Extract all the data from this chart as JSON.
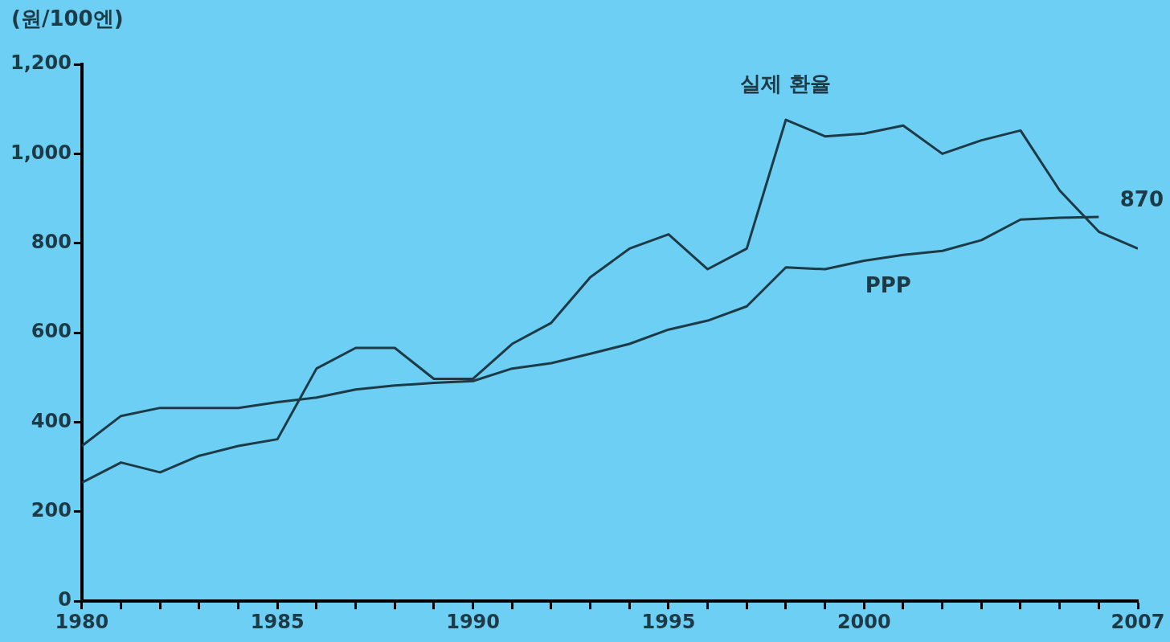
{
  "chart_data": {
    "type": "line",
    "ylabel": "(원/100엔)",
    "x": [
      1980,
      1981,
      1982,
      1983,
      1984,
      1985,
      1986,
      1987,
      1988,
      1989,
      1990,
      1991,
      1992,
      1993,
      1994,
      1995,
      1996,
      1997,
      1998,
      1999,
      2000,
      2001,
      2002,
      2003,
      2004,
      2005,
      2006,
      2007
    ],
    "series": [
      {
        "name": "실제 환율",
        "color": "#1e3a46",
        "values": [
          265,
          310,
          288,
          325,
          347,
          362,
          520,
          566,
          566,
          497,
          497,
          575,
          622,
          724,
          788,
          820,
          742,
          788,
          1076,
          1039,
          1045,
          1063,
          1000,
          1030,
          1052,
          918,
          826,
          788
        ]
      },
      {
        "name": "PPP",
        "color": "#1e3a46",
        "values": [
          347,
          414,
          432,
          432,
          432,
          445,
          455,
          473,
          482,
          488,
          492,
          520,
          532,
          553,
          575,
          607,
          627,
          659,
          746,
          742,
          761,
          774,
          783,
          807,
          853,
          857,
          859,
          null
        ]
      }
    ],
    "annotations": [
      "870"
    ],
    "xlim": [
      1980,
      2007
    ],
    "xticks": [
      1980,
      {
        "value": 1981,
        "label": null
      },
      {
        "value": 1982,
        "label": null
      },
      {
        "value": 1983,
        "label": null
      },
      {
        "value": 1984,
        "label": null
      },
      1985,
      {
        "value": 1986,
        "label": null
      },
      {
        "value": 1987,
        "label": null
      },
      {
        "value": 1988,
        "label": null
      },
      {
        "value": 1989,
        "label": null
      },
      1990,
      {
        "value": 1991,
        "label": null
      },
      {
        "value": 1992,
        "label": null
      },
      {
        "value": 1993,
        "label": null
      },
      {
        "value": 1994,
        "label": null
      },
      1995,
      {
        "value": 1996,
        "label": null
      },
      {
        "value": 1997,
        "label": null
      },
      {
        "value": 1998,
        "label": null
      },
      {
        "value": 1999,
        "label": null
      },
      2000,
      {
        "value": 2001,
        "label": null
      },
      {
        "value": 2002,
        "label": null
      },
      {
        "value": 2003,
        "label": null
      },
      {
        "value": 2004,
        "label": null
      },
      {
        "value": 2005,
        "label": null
      },
      {
        "value": 2006,
        "label": null
      },
      2007
    ],
    "ylim": [
      0,
      1200
    ],
    "yticks": [
      0,
      200,
      400,
      600,
      800,
      {
        "value": 1000,
        "label": "1,000"
      },
      {
        "value": 1200,
        "label": "1,200"
      }
    ],
    "grid": false,
    "legend": false,
    "marker": "none",
    "line_style": "solid"
  }
}
